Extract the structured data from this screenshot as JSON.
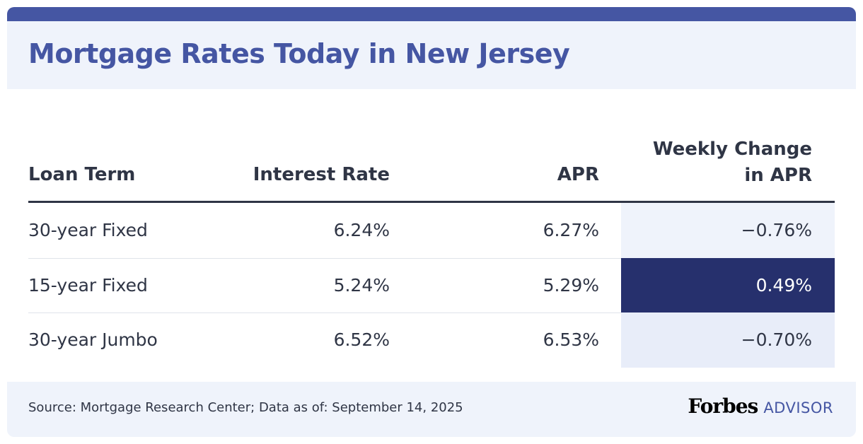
{
  "title": "Mortgage Rates Today in New Jersey",
  "header": {
    "term": "Loan Term",
    "rate": "Interest Rate",
    "apr": "APR",
    "change_line1": "Weekly Change",
    "change_line2": "in APR"
  },
  "rows": [
    {
      "term": "30-year Fixed",
      "rate": "6.24%",
      "apr": "6.27%",
      "change": "−0.76%"
    },
    {
      "term": "15-year Fixed",
      "rate": "5.24%",
      "apr": "5.29%",
      "change": "0.49%"
    },
    {
      "term": "30-year Jumbo",
      "rate": "6.52%",
      "apr": "6.53%",
      "change": "−0.70%"
    }
  ],
  "change_cell_colors": [
    "#eff3fb",
    "#26306d",
    "#e8edf9"
  ],
  "change_text_colors": [
    "#2f3545",
    "#ffffff",
    "#2f3545"
  ],
  "footer": {
    "source": "Source: Mortgage Research Center; Data as of: September 14, 2025",
    "brand": "Forbes",
    "brand_sub": "ADVISOR"
  },
  "colors": {
    "accent": "#4556a3",
    "text": "#2f3545",
    "band": "#eff3fb"
  },
  "chart_data": {
    "type": "table",
    "title": "Mortgage Rates Today in New Jersey",
    "columns": [
      "Loan Term",
      "Interest Rate",
      "APR",
      "Weekly Change in APR"
    ],
    "rows": [
      [
        "30-year Fixed",
        "6.24%",
        "6.27%",
        "−0.76%"
      ],
      [
        "15-year Fixed",
        "5.24%",
        "5.29%",
        "0.49%"
      ],
      [
        "30-year Jumbo",
        "6.52%",
        "6.53%",
        "−0.70%"
      ]
    ],
    "values": {
      "interest_rate": [
        6.24,
        5.24,
        6.52
      ],
      "apr": [
        6.27,
        5.29,
        6.53
      ],
      "weekly_change_apr": [
        -0.76,
        0.49,
        -0.7
      ]
    }
  }
}
